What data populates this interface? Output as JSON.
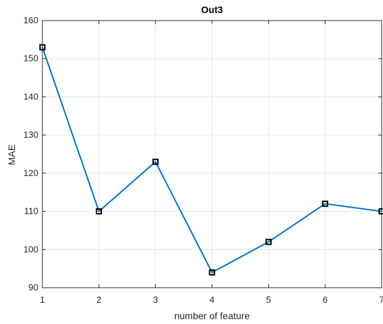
{
  "chart_data": {
    "type": "line",
    "title": "Out3",
    "xlabel": "number of feature",
    "ylabel": "MAE",
    "xlim": [
      1,
      7
    ],
    "ylim": [
      90,
      160
    ],
    "grid": true,
    "x": [
      1,
      2,
      3,
      4,
      5,
      6,
      7
    ],
    "series": [
      {
        "values": [
          153,
          110,
          123,
          94,
          102,
          112,
          110
        ],
        "line_color": "#0072BD",
        "marker": "square",
        "marker_color": "#000000"
      }
    ],
    "x_ticks": [
      1,
      2,
      3,
      4,
      5,
      6,
      7
    ],
    "y_ticks": [
      90,
      100,
      110,
      120,
      130,
      140,
      150,
      160
    ]
  }
}
